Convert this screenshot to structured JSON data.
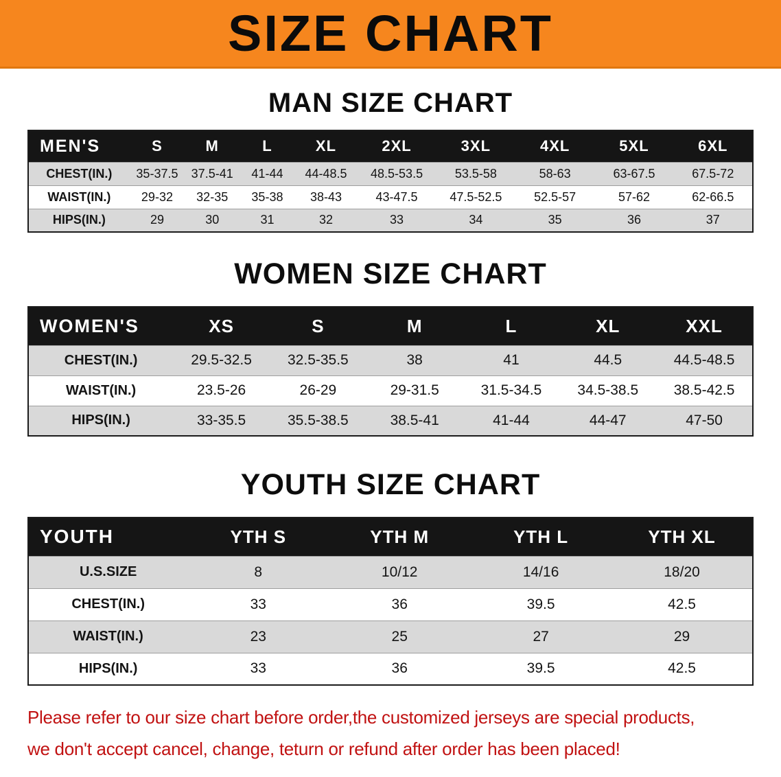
{
  "banner": {
    "title": "SIZE CHART"
  },
  "men": {
    "heading": "MAN SIZE CHART",
    "table": {
      "header": [
        "MEN'S",
        "S",
        "M",
        "L",
        "XL",
        "2XL",
        "3XL",
        "4XL",
        "5XL",
        "6XL"
      ],
      "rows": [
        {
          "label": "CHEST(IN.)",
          "values": [
            "35-37.5",
            "37.5-41",
            "41-44",
            "44-48.5",
            "48.5-53.5",
            "53.5-58",
            "58-63",
            "63-67.5",
            "67.5-72"
          ]
        },
        {
          "label": "WAIST(IN.)",
          "values": [
            "29-32",
            "32-35",
            "35-38",
            "38-43",
            "43-47.5",
            "47.5-52.5",
            "52.5-57",
            "57-62",
            "62-66.5"
          ]
        },
        {
          "label": "HIPS(IN.)",
          "values": [
            "29",
            "30",
            "31",
            "32",
            "33",
            "34",
            "35",
            "36",
            "37"
          ]
        }
      ]
    }
  },
  "women": {
    "heading": "WOMEN SIZE CHART",
    "table": {
      "header": [
        "WOMEN'S",
        "XS",
        "S",
        "M",
        "L",
        "XL",
        "XXL"
      ],
      "rows": [
        {
          "label": "CHEST(IN.)",
          "values": [
            "29.5-32.5",
            "32.5-35.5",
            "38",
            "41",
            "44.5",
            "44.5-48.5"
          ]
        },
        {
          "label": "WAIST(IN.)",
          "values": [
            "23.5-26",
            "26-29",
            "29-31.5",
            "31.5-34.5",
            "34.5-38.5",
            "38.5-42.5"
          ]
        },
        {
          "label": "HIPS(IN.)",
          "values": [
            "33-35.5",
            "35.5-38.5",
            "38.5-41",
            "41-44",
            "44-47",
            "47-50"
          ]
        }
      ]
    }
  },
  "youth": {
    "heading": "YOUTH SIZE CHART",
    "table": {
      "header": [
        "YOUTH",
        "YTH S",
        "YTH M",
        "YTH L",
        "YTH XL"
      ],
      "rows": [
        {
          "label": "U.S.SIZE",
          "values": [
            "8",
            "10/12",
            "14/16",
            "18/20"
          ]
        },
        {
          "label": "CHEST(IN.)",
          "values": [
            "33",
            "36",
            "39.5",
            "42.5"
          ]
        },
        {
          "label": "WAIST(IN.)",
          "values": [
            "23",
            "25",
            "27",
            "29"
          ]
        },
        {
          "label": "HIPS(IN.)",
          "values": [
            "33",
            "36",
            "39.5",
            "42.5"
          ]
        }
      ]
    }
  },
  "disclaimer": {
    "line1": "Please refer to our size chart before order,the customized jerseys are special products,",
    "line2": "we don't accept cancel, change, teturn or refund after order has been placed!"
  },
  "colors": {
    "banner_orange": "#f6861e",
    "table_header_black": "#151515",
    "row_gray": "#d9d9d9",
    "disclaimer_red": "#c11212"
  }
}
